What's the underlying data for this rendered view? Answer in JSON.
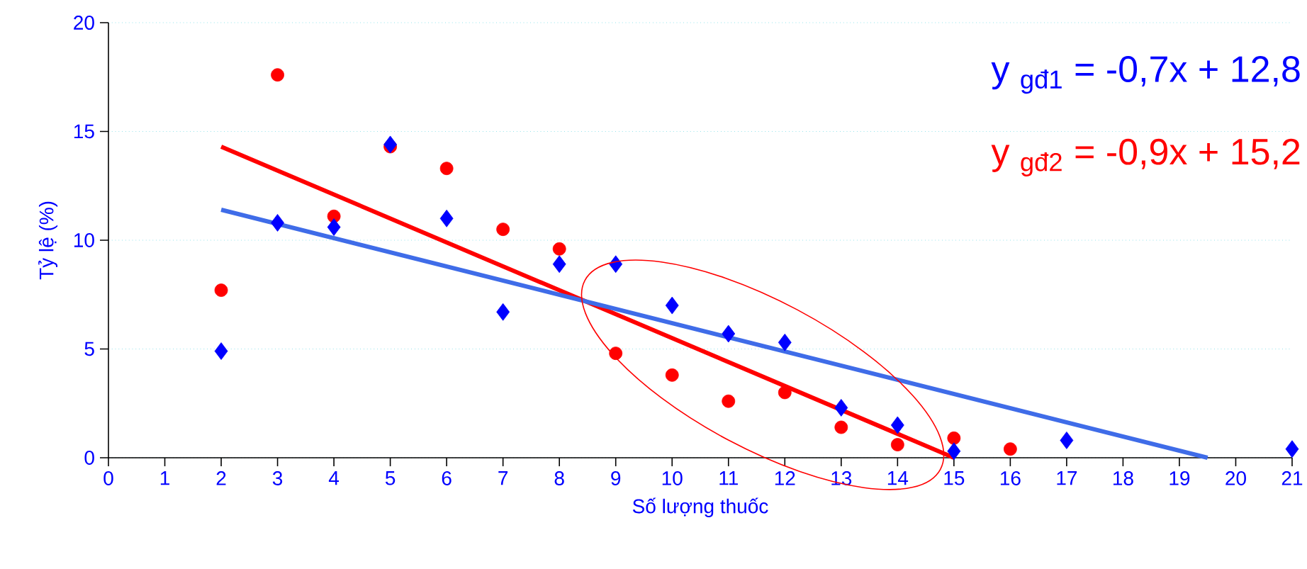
{
  "chart_data": {
    "type": "scatter",
    "xlabel": "Số lượng thuốc",
    "ylabel": "Tỷ lệ (%)",
    "xlim": [
      0,
      21
    ],
    "ylim": [
      0,
      20
    ],
    "xticks": [
      0,
      1,
      2,
      3,
      4,
      5,
      6,
      7,
      8,
      9,
      10,
      11,
      12,
      13,
      14,
      15,
      16,
      17,
      18,
      19,
      20,
      21
    ],
    "yticks": [
      0,
      5,
      10,
      15,
      20
    ],
    "grid": "y",
    "annotations": [
      "y $_{gđ1}$ = -0,7x + 12,8",
      "y $_{gđ2}$ = -0,9x + 15,2"
    ],
    "series": [
      {
        "marker": "diamond",
        "color": "#0000ff",
        "x": [
          2,
          3,
          4,
          5,
          6,
          7,
          8,
          9,
          10,
          11,
          12,
          13,
          14,
          15,
          17,
          21
        ],
        "values": [
          4.9,
          10.8,
          10.6,
          14.4,
          11.0,
          6.7,
          8.9,
          8.9,
          7.0,
          5.7,
          5.3,
          2.3,
          1.5,
          0.3,
          0.8,
          0.4
        ]
      },
      {
        "marker": "circle",
        "color": "#ff0000",
        "x": [
          2,
          3,
          4,
          5,
          6,
          7,
          8,
          9,
          10,
          11,
          12,
          13,
          14,
          15,
          16
        ],
        "values": [
          7.7,
          17.6,
          11.1,
          14.3,
          13.3,
          10.5,
          9.6,
          4.8,
          3.8,
          2.6,
          3.0,
          1.4,
          0.6,
          0.9,
          0.4
        ]
      },
      {
        "type": "line",
        "marker": "none",
        "color": "#3f6ce8",
        "x": [
          2,
          19.5
        ],
        "values": [
          11.4,
          0
        ]
      },
      {
        "type": "line",
        "marker": "none",
        "color": "#ff0000",
        "x": [
          2,
          15
        ],
        "values": [
          14.3,
          0
        ]
      }
    ]
  }
}
